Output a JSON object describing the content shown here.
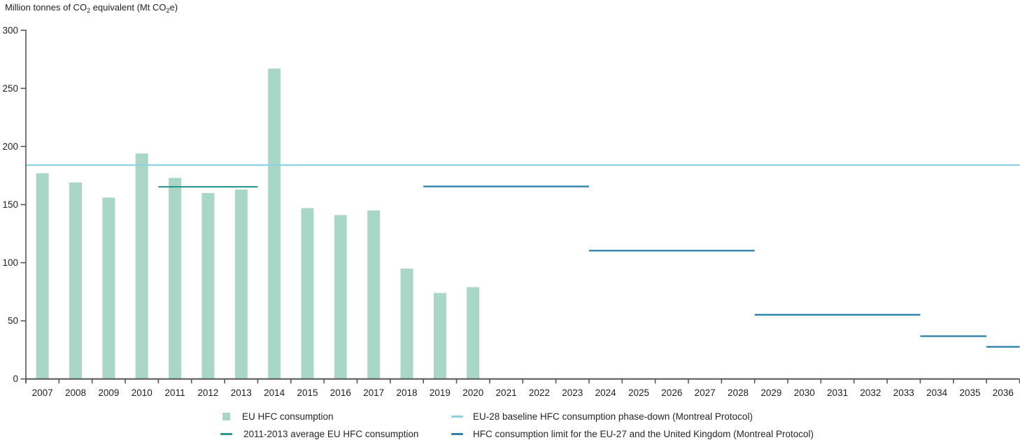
{
  "chart_data": {
    "type": "bar",
    "title": "Million tonnes of CO2 equivalent (Mt CO2e)",
    "title_segments": [
      {
        "t": "Million tonnes of CO"
      },
      {
        "t": "2",
        "sub": true
      },
      {
        "t": " equivalent (Mt CO"
      },
      {
        "t": "2",
        "sub": true
      },
      {
        "t": "e)"
      }
    ],
    "ylim": [
      0,
      300
    ],
    "yticks": [
      0,
      50,
      100,
      150,
      200,
      250,
      300
    ],
    "x_years": [
      2007,
      2008,
      2009,
      2010,
      2011,
      2012,
      2013,
      2014,
      2015,
      2016,
      2017,
      2018,
      2019,
      2020,
      2021,
      2022,
      2023,
      2024,
      2025,
      2026,
      2027,
      2028,
      2029,
      2030,
      2031,
      2032,
      2033,
      2034,
      2035,
      2036
    ],
    "bar_series": {
      "name": "EU HFC consumption",
      "categories": [
        2007,
        2008,
        2009,
        2010,
        2011,
        2012,
        2013,
        2014,
        2015,
        2016,
        2017,
        2018,
        2019,
        2020
      ],
      "values": [
        177,
        169,
        156,
        194,
        173,
        160,
        163,
        267,
        147,
        141,
        145,
        95,
        74,
        79
      ],
      "color": "#a9d7c5"
    },
    "baseline_line": {
      "name": "EU-28 baseline HFC consumption phase-down (Montreal Protocol)",
      "value": 184,
      "from_year": 2007,
      "to_year": 2036,
      "color": "#8ed3e4"
    },
    "average_line": {
      "name": "2011-2013 average EU HFC consumption",
      "value": 165.3,
      "from_year": 2011,
      "to_year": 2013,
      "color": "#2e968c"
    },
    "limit_step_line": {
      "name": "HFC consumption limit for the EU-27 and the United Kingdom (Montreal Protocol)",
      "color": "#3182ab",
      "segments": [
        {
          "from_year": 2019,
          "to_year": 2023,
          "value": 165.6
        },
        {
          "from_year": 2024,
          "to_year": 2028,
          "value": 110.4
        },
        {
          "from_year": 2029,
          "to_year": 2033,
          "value": 55.2
        },
        {
          "from_year": 2034,
          "to_year": 2035,
          "value": 36.8
        },
        {
          "from_year": 2036,
          "to_year": 2036,
          "value": 27.6
        }
      ]
    },
    "axis_color": "#55565a",
    "text_color": "#1f1f1f",
    "legend": [
      {
        "label": "EU HFC consumption",
        "swatch": "square",
        "color": "#a9d7c5"
      },
      {
        "label": "2011-2013 average EU HFC consumption",
        "swatch": "line",
        "color": "#2e968c"
      },
      {
        "label": "EU-28 baseline HFC consumption phase-down (Montreal Protocol)",
        "swatch": "line",
        "color": "#8ed3e4"
      },
      {
        "label": "HFC consumption limit for the EU-27 and the United Kingdom (Montreal Protocol)",
        "swatch": "line",
        "color": "#3182ab"
      }
    ]
  }
}
